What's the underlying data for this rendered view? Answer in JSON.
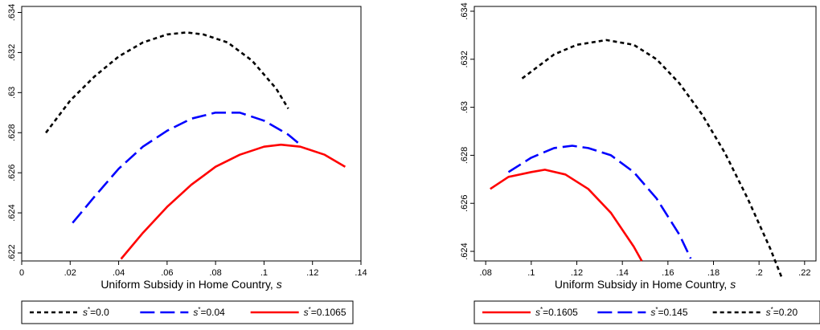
{
  "chart_data": [
    {
      "type": "line",
      "xlabel": "Uniform Subsidy in Home Country,",
      "xlabel_var": "s",
      "xlim": [
        0,
        0.14
      ],
      "ylim": [
        0.6216,
        0.6343
      ],
      "xticks": [
        0,
        0.02,
        0.04,
        0.06,
        0.08,
        0.1,
        0.12,
        0.14
      ],
      "xtick_labels": [
        "0",
        ".02",
        ".04",
        ".06",
        ".08",
        ".1",
        ".12",
        ".14"
      ],
      "yticks": [
        0.622,
        0.624,
        0.626,
        0.628,
        0.63,
        0.632,
        0.634
      ],
      "ytick_labels": [
        ".622",
        ".624",
        ".626",
        ".628",
        ".63",
        ".632",
        ".634"
      ],
      "legend_placement": "bottom",
      "series": [
        {
          "name": "s*=0.0",
          "label_var": "s",
          "label_value": "=0.0",
          "color": "#000000",
          "dash": "short",
          "x": [
            0.01,
            0.02,
            0.03,
            0.04,
            0.05,
            0.06,
            0.068,
            0.075,
            0.085,
            0.095,
            0.105,
            0.11
          ],
          "y": [
            0.628,
            0.6296,
            0.6308,
            0.6318,
            0.6325,
            0.6329,
            0.633,
            0.6329,
            0.6325,
            0.6316,
            0.6302,
            0.6292
          ]
        },
        {
          "name": "s*=0.04",
          "label_var": "s",
          "label_value": "=0.04",
          "color": "#0000ff",
          "dash": "long",
          "x": [
            0.021,
            0.03,
            0.04,
            0.05,
            0.06,
            0.07,
            0.08,
            0.085,
            0.09,
            0.1,
            0.11,
            0.114
          ],
          "y": [
            0.6235,
            0.6248,
            0.6262,
            0.6273,
            0.6281,
            0.6287,
            0.629,
            0.629,
            0.629,
            0.6286,
            0.6279,
            0.6275
          ]
        },
        {
          "name": "s*=0.1065",
          "label_var": "s",
          "label_value": "=0.1065",
          "color": "#ff0000",
          "dash": "solid",
          "x": [
            0.041,
            0.05,
            0.06,
            0.07,
            0.08,
            0.09,
            0.1,
            0.107,
            0.115,
            0.125,
            0.1335
          ],
          "y": [
            0.6217,
            0.623,
            0.6243,
            0.6254,
            0.6263,
            0.6269,
            0.6273,
            0.6274,
            0.6273,
            0.6269,
            0.6263
          ]
        }
      ]
    },
    {
      "type": "line",
      "xlabel": "Uniform Subsidy in Home Country,",
      "xlabel_var": "s",
      "xlim": [
        0.075,
        0.225
      ],
      "ylim": [
        0.6236,
        0.6342
      ],
      "xticks": [
        0.08,
        0.1,
        0.12,
        0.14,
        0.16,
        0.18,
        0.2,
        0.22
      ],
      "xtick_labels": [
        ".08",
        ".1",
        ".12",
        ".14",
        ".16",
        ".18",
        ".2",
        ".22"
      ],
      "yticks": [
        0.624,
        0.626,
        0.628,
        0.63,
        0.632,
        0.634
      ],
      "ytick_labels": [
        ".624",
        ".626",
        ".628",
        ".63",
        ".632",
        ".634"
      ],
      "legend_placement": "bottom",
      "series": [
        {
          "name": "s*=0.1605",
          "label_var": "s",
          "label_value": "=0.1605",
          "color": "#ff0000",
          "dash": "solid",
          "x": [
            0.082,
            0.09,
            0.1,
            0.106,
            0.115,
            0.125,
            0.135,
            0.145,
            0.1485
          ],
          "y": [
            0.6266,
            0.6271,
            0.6273,
            0.6274,
            0.6272,
            0.6266,
            0.6256,
            0.6242,
            0.6236
          ]
        },
        {
          "name": "s*=0.145",
          "label_var": "s",
          "label_value": "=0.145",
          "color": "#0000ff",
          "dash": "long",
          "x": [
            0.09,
            0.1,
            0.11,
            0.118,
            0.125,
            0.135,
            0.145,
            0.155,
            0.165,
            0.17
          ],
          "y": [
            0.6273,
            0.6279,
            0.6283,
            0.6284,
            0.6283,
            0.628,
            0.6273,
            0.6262,
            0.6247,
            0.6237
          ]
        },
        {
          "name": "s*=0.20",
          "label_var": "s",
          "label_value": "=0.20",
          "color": "#000000",
          "dash": "short",
          "x": [
            0.096,
            0.11,
            0.12,
            0.133,
            0.145,
            0.155,
            0.165,
            0.175,
            0.185,
            0.195,
            0.205,
            0.21
          ],
          "y": [
            0.6312,
            0.6322,
            0.6326,
            0.6328,
            0.6326,
            0.632,
            0.631,
            0.6297,
            0.6281,
            0.6262,
            0.6241,
            0.6229
          ]
        }
      ]
    }
  ]
}
